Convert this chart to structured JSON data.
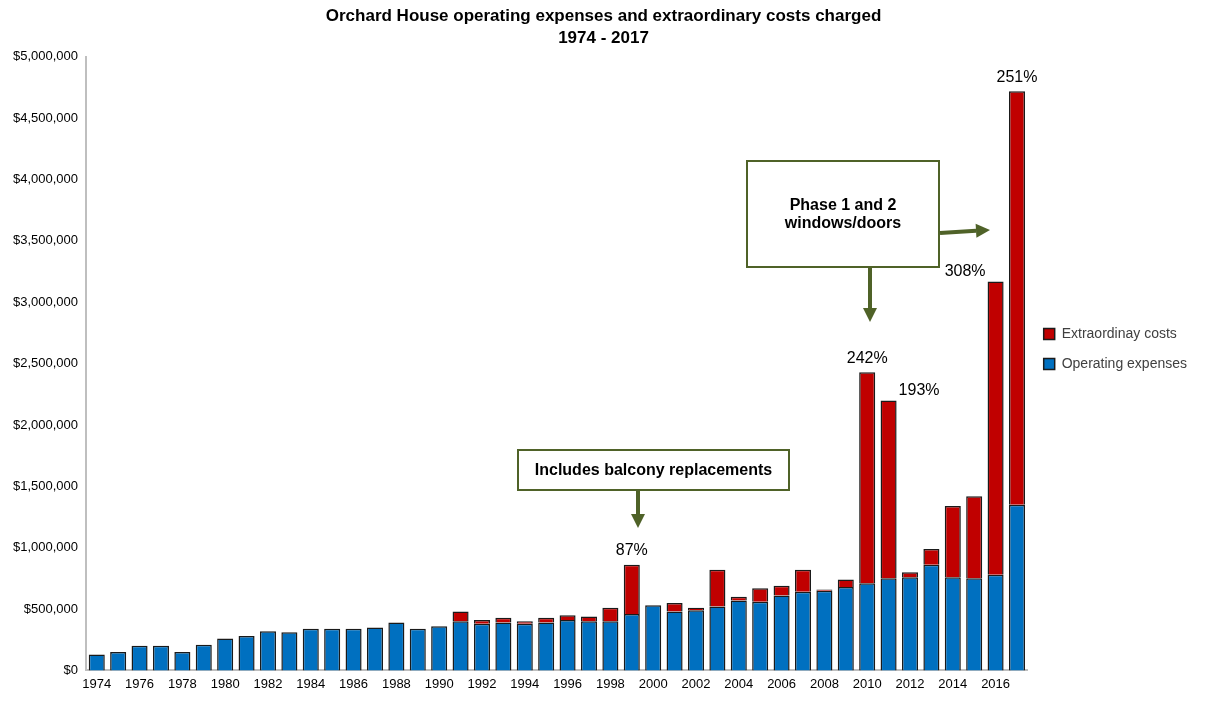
{
  "chart_data": {
    "type": "bar",
    "title": "Orchard House operating expenses and extraordinary costs charged",
    "subtitle": "1974 - 2017",
    "categories": [
      "1974",
      null,
      "1976",
      null,
      "1978",
      null,
      "1980",
      null,
      "1982",
      null,
      "1984",
      null,
      "1986",
      null,
      "1988",
      null,
      "1990",
      null,
      "1992",
      null,
      "1994",
      null,
      "1996",
      null,
      "1998",
      null,
      "2000",
      null,
      "2002",
      null,
      "2004",
      null,
      "2006",
      null,
      "2008",
      null,
      "2010",
      null,
      "2012",
      null,
      "2014",
      null,
      "2016",
      null
    ],
    "stacked": true,
    "series": [
      {
        "name": "Operating expenses",
        "color": "#0070c0",
        "values": [
          130000,
          150000,
          200000,
          200000,
          150000,
          210000,
          260000,
          280000,
          320000,
          310000,
          340000,
          340000,
          340000,
          350000,
          390000,
          340000,
          360000,
          400000,
          380000,
          390000,
          380000,
          390000,
          410000,
          400000,
          400000,
          460000,
          530000,
          480000,
          490000,
          520000,
          570000,
          560000,
          610000,
          640000,
          650000,
          680000,
          710000,
          750000,
          760000,
          860000,
          760000,
          750000,
          780000,
          1350000
        ]
      },
      {
        "name": "Extraordinay costs",
        "color": "#c00000",
        "values": [
          null,
          null,
          null,
          null,
          null,
          null,
          null,
          null,
          null,
          null,
          null,
          null,
          null,
          null,
          null,
          null,
          null,
          80000,
          30000,
          40000,
          20000,
          40000,
          40000,
          40000,
          110000,
          400000,
          null,
          70000,
          20000,
          300000,
          30000,
          110000,
          80000,
          180000,
          10000,
          60000,
          1720000,
          1450000,
          40000,
          130000,
          580000,
          670000,
          2390000,
          3370000
        ]
      }
    ],
    "ylim": [
      0,
      5000000
    ],
    "yticks": [
      {
        "value": 0,
        "label": "$0"
      },
      {
        "value": 500000,
        "label": "$500,000"
      },
      {
        "value": 1000000,
        "label": "$1,000,000"
      },
      {
        "value": 1500000,
        "label": "$1,500,000"
      },
      {
        "value": 2000000,
        "label": "$2,000,000"
      },
      {
        "value": 2500000,
        "label": "$2,500,000"
      },
      {
        "value": 3000000,
        "label": "$3,000,000"
      },
      {
        "value": 3500000,
        "label": "$3,500,000"
      },
      {
        "value": 4000000,
        "label": "$4,000,000"
      },
      {
        "value": 4500000,
        "label": "$4,500,000"
      },
      {
        "value": 5000000,
        "label": "$5,000,000"
      }
    ],
    "grid": false,
    "legend": "right",
    "annotations": [
      "Includes balcony replacements",
      "Phase 1 and 2 windows/doors",
      "87%",
      "242%",
      "193%",
      "308%",
      "251%"
    ]
  }
}
